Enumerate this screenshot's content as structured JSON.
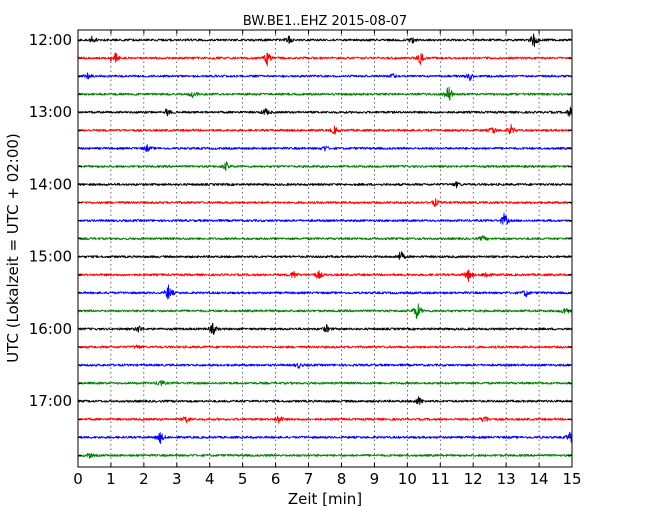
{
  "chart_data": {
    "type": "line",
    "title": "BW.BE1..EHZ 2015-08-07",
    "xlabel": "Zeit  [min]",
    "ylabel": "UTC (Lokalzeit = UTC + 02:00)",
    "xlim": [
      0,
      15
    ],
    "x_ticks": [
      "0",
      "1",
      "2",
      "3",
      "4",
      "5",
      "6",
      "7",
      "8",
      "9",
      "10",
      "11",
      "12",
      "13",
      "14",
      "15"
    ],
    "y_tick_labels": [
      "12:00",
      "13:00",
      "14:00",
      "15:00",
      "16:00",
      "17:00"
    ],
    "row_interval_minutes": 15,
    "grid": "vertical-dotted",
    "colors": [
      "#000000",
      "#ff0000",
      "#0000ff",
      "#008000"
    ],
    "rows": [
      {
        "time": "12:00",
        "color": "#000000",
        "events": [
          [
            0.45,
            0.35
          ],
          [
            6.4,
            0.3
          ],
          [
            10.15,
            0.3
          ],
          [
            13.85,
            0.6
          ]
        ]
      },
      {
        "time": "12:15",
        "color": "#ff0000",
        "events": [
          [
            1.1,
            0.7
          ],
          [
            5.75,
            0.6
          ],
          [
            10.4,
            0.55
          ]
        ]
      },
      {
        "time": "12:30",
        "color": "#0000ff",
        "events": [
          [
            0.3,
            0.2
          ],
          [
            9.6,
            0.2
          ],
          [
            11.9,
            0.3
          ]
        ]
      },
      {
        "time": "12:45",
        "color": "#008000",
        "events": [
          [
            3.5,
            0.3
          ],
          [
            11.25,
            0.8
          ]
        ]
      },
      {
        "time": "13:00",
        "color": "#000000",
        "events": [
          [
            2.7,
            0.3
          ],
          [
            5.7,
            0.3
          ],
          [
            14.95,
            0.4
          ]
        ]
      },
      {
        "time": "13:15",
        "color": "#ff0000",
        "events": [
          [
            7.8,
            0.3
          ],
          [
            12.6,
            0.3
          ],
          [
            13.15,
            0.4
          ]
        ]
      },
      {
        "time": "13:30",
        "color": "#0000ff",
        "events": [
          [
            2.1,
            0.25
          ],
          [
            7.5,
            0.2
          ]
        ]
      },
      {
        "time": "13:45",
        "color": "#008000",
        "events": [
          [
            4.5,
            0.35
          ]
        ]
      },
      {
        "time": "14:00",
        "color": "#000000",
        "events": [
          [
            11.5,
            0.2
          ]
        ]
      },
      {
        "time": "14:15",
        "color": "#ff0000",
        "events": [
          [
            10.85,
            0.3
          ]
        ]
      },
      {
        "time": "14:30",
        "color": "#0000ff",
        "events": [
          [
            12.95,
            0.6
          ]
        ]
      },
      {
        "time": "14:45",
        "color": "#008000",
        "events": [
          [
            12.3,
            0.2
          ]
        ]
      },
      {
        "time": "15:00",
        "color": "#000000",
        "events": [
          [
            9.8,
            0.45
          ]
        ]
      },
      {
        "time": "15:15",
        "color": "#ff0000",
        "events": [
          [
            6.55,
            0.35
          ],
          [
            7.3,
            0.35
          ],
          [
            11.85,
            0.5
          ],
          [
            12.4,
            0.3
          ]
        ]
      },
      {
        "time": "15:30",
        "color": "#0000ff",
        "events": [
          [
            2.75,
            0.65
          ],
          [
            13.6,
            0.3
          ]
        ]
      },
      {
        "time": "15:45",
        "color": "#008000",
        "events": [
          [
            10.3,
            0.75
          ],
          [
            14.8,
            0.35
          ]
        ]
      },
      {
        "time": "16:00",
        "color": "#000000",
        "events": [
          [
            1.85,
            0.3
          ],
          [
            4.1,
            0.45
          ],
          [
            7.55,
            0.3
          ]
        ]
      },
      {
        "time": "16:15",
        "color": "#ff0000",
        "events": [
          [
            1.8,
            0.15
          ]
        ]
      },
      {
        "time": "16:30",
        "color": "#0000ff",
        "events": [
          [
            6.7,
            0.2
          ]
        ]
      },
      {
        "time": "16:45",
        "color": "#008000",
        "events": [
          [
            2.5,
            0.3
          ]
        ]
      },
      {
        "time": "17:00",
        "color": "#000000",
        "events": [
          [
            10.35,
            0.35
          ]
        ]
      },
      {
        "time": "17:15",
        "color": "#ff0000",
        "events": [
          [
            3.3,
            0.3
          ],
          [
            6.1,
            0.35
          ],
          [
            12.35,
            0.35
          ]
        ]
      },
      {
        "time": "17:30",
        "color": "#0000ff",
        "events": [
          [
            2.5,
            0.45
          ],
          [
            14.95,
            0.45
          ]
        ]
      },
      {
        "time": "17:45",
        "color": "#008000",
        "events": [
          [
            0.35,
            0.2
          ]
        ]
      }
    ]
  }
}
